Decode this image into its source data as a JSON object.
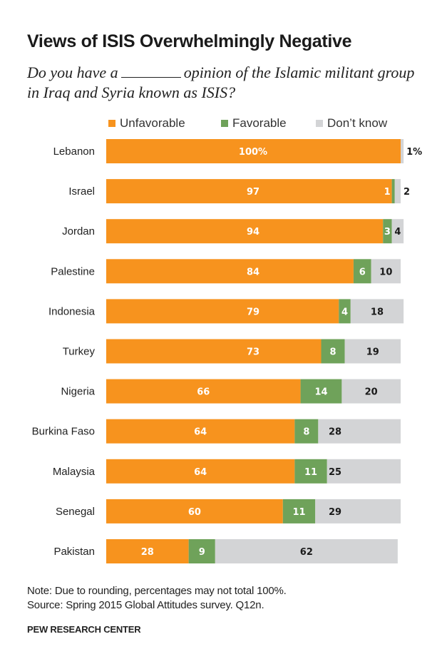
{
  "chart_data": {
    "type": "bar",
    "orientation": "horizontal",
    "stacked": true,
    "title": "Views of ISIS Overwhelmingly Negative",
    "subtitle_part1": "Do you have a",
    "subtitle_part2": "opinion of the Islamic militant group in Iraq and Syria known as ISIS?",
    "xlabel": "",
    "ylabel": "",
    "xlim": [
      0,
      100
    ],
    "grid": false,
    "legend_position": "top",
    "categories": [
      "Lebanon",
      "Israel",
      "Jordan",
      "Palestine",
      "Indonesia",
      "Turkey",
      "Nigeria",
      "Burkina Faso",
      "Malaysia",
      "Senegal",
      "Pakistan"
    ],
    "series": [
      {
        "name": "Unfavorable",
        "color": "#F7931E",
        "values": [
          100,
          97,
          94,
          84,
          79,
          73,
          66,
          64,
          64,
          60,
          28
        ],
        "labels": [
          "100%",
          "97",
          "94",
          "84",
          "79",
          "73",
          "66",
          "64",
          "64",
          "60",
          "28"
        ]
      },
      {
        "name": "Favorable",
        "color": "#6FA25A",
        "values": [
          0,
          1,
          3,
          6,
          4,
          8,
          14,
          8,
          11,
          11,
          9
        ],
        "labels": [
          "",
          "1",
          "3",
          "6",
          "4",
          "8",
          "14",
          "8",
          "11",
          "11",
          "9"
        ]
      },
      {
        "name": "Don't know",
        "color": "#D3D4D6",
        "values": [
          1,
          2,
          4,
          10,
          18,
          19,
          20,
          28,
          25,
          29,
          62
        ],
        "labels": [
          "1%",
          "2",
          "4",
          "10",
          "18",
          "19",
          "20",
          "28",
          "25",
          "29",
          "62"
        ]
      }
    ]
  },
  "legend": {
    "unfavorable": "Unfavorable",
    "favorable": "Favorable",
    "dont_know": "Don’t know"
  },
  "footer": {
    "note": "Note: Due to rounding, percentages may not total 100%.",
    "source": "Source: Spring 2015 Global Attitudes survey. Q12n.",
    "brand": "PEW RESEARCH CENTER"
  }
}
